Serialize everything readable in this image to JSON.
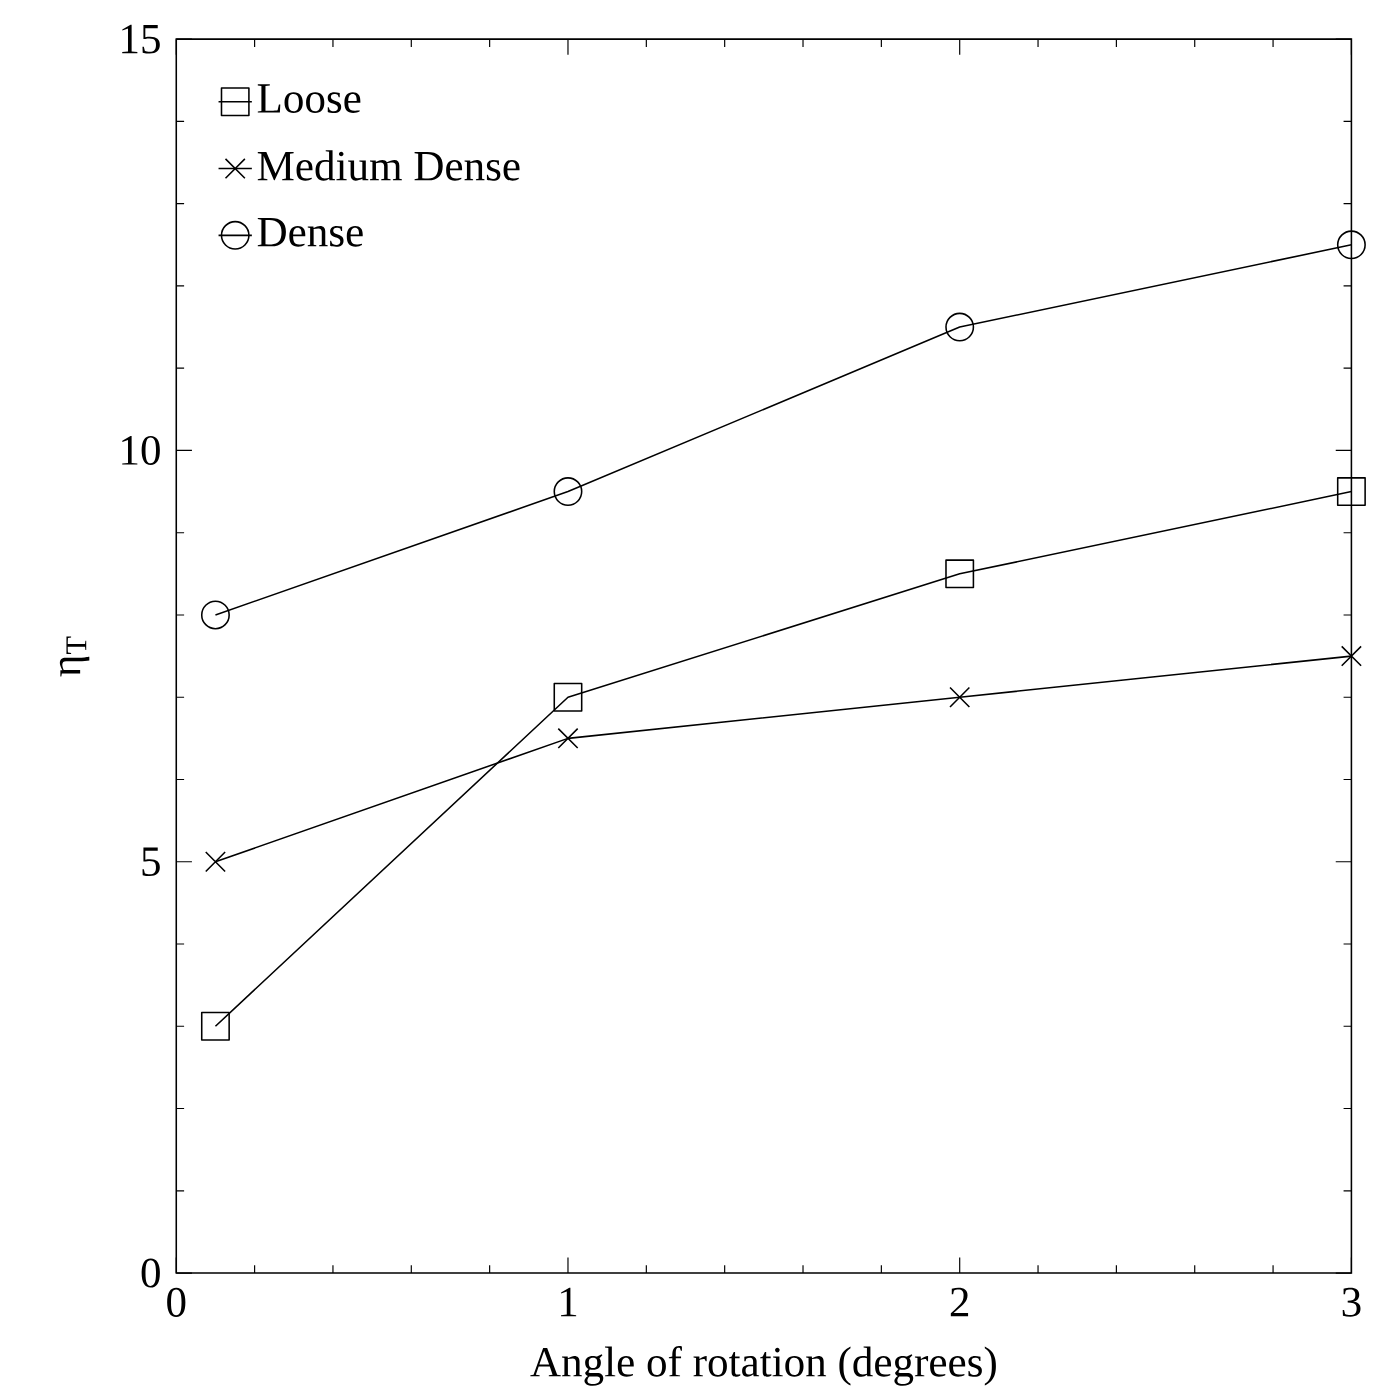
{
  "chart_data": {
    "type": "line",
    "xlabel": "Angle of rotation (degrees)",
    "ylabel": "η$_{T}$",
    "x": [
      0.1,
      1,
      2,
      3
    ],
    "series": [
      {
        "name": "Loose",
        "color": "#000000",
        "marker": "square",
        "values": [
          3,
          7,
          8.5,
          9.5
        ]
      },
      {
        "name": "Medium Dense",
        "color": "#000000",
        "marker": "cross",
        "values": [
          5,
          6.5,
          7,
          7.5
        ]
      },
      {
        "name": "Dense",
        "color": "#000000",
        "marker": "circle",
        "values": [
          8,
          9.5,
          11.5,
          12.5
        ]
      }
    ],
    "xlim": [
      0,
      3
    ],
    "ylim": [
      0,
      15
    ],
    "xticks": [
      0,
      1,
      2,
      3
    ],
    "yticks": [
      0,
      5,
      10,
      15
    ],
    "grid": false,
    "legend": "top left",
    "line_style": "solid"
  }
}
